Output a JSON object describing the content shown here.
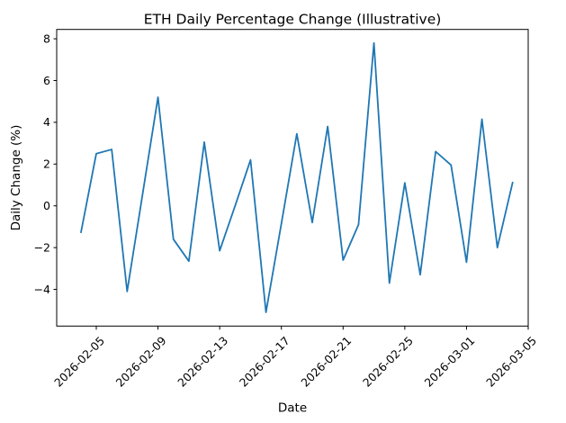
{
  "chart_data": {
    "type": "line",
    "title": "ETH Daily Percentage Change (Illustrative)",
    "xlabel": "Date",
    "ylabel": "Daily Change (%)",
    "line_color": "#1f77b4",
    "background_color": "#ffffff",
    "grid": false,
    "legend": "none",
    "x": [
      "2026-02-04",
      "2026-02-05",
      "2026-02-06",
      "2026-02-07",
      "2026-02-08",
      "2026-02-09",
      "2026-02-10",
      "2026-02-11",
      "2026-02-12",
      "2026-02-13",
      "2026-02-14",
      "2026-02-15",
      "2026-02-16",
      "2026-02-17",
      "2026-02-18",
      "2026-02-19",
      "2026-02-20",
      "2026-02-21",
      "2026-02-22",
      "2026-02-23",
      "2026-02-24",
      "2026-02-25",
      "2026-02-26",
      "2026-02-27",
      "2026-02-28",
      "2026-03-01",
      "2026-03-02",
      "2026-03-03",
      "2026-03-04"
    ],
    "y": [
      -1.3,
      2.5,
      2.7,
      -4.1,
      0.55,
      5.2,
      -1.6,
      -2.65,
      3.05,
      -2.15,
      0.0,
      2.2,
      -5.1,
      -0.85,
      3.45,
      -0.8,
      3.8,
      -2.6,
      -0.9,
      7.8,
      -3.7,
      1.1,
      -3.3,
      2.6,
      1.95,
      -2.7,
      4.15,
      -2.0,
      1.15
    ],
    "x_tick_labels": [
      "2026-02-05",
      "2026-02-09",
      "2026-02-13",
      "2026-02-17",
      "2026-02-21",
      "2026-02-25",
      "2026-03-01",
      "2026-03-05"
    ],
    "y_ticks": [
      8,
      6,
      4,
      2,
      0,
      -2,
      -4
    ],
    "ylim": [
      -5.75,
      8.45
    ],
    "xlim": [
      "2026-02-02",
      "2026-03-05"
    ]
  }
}
